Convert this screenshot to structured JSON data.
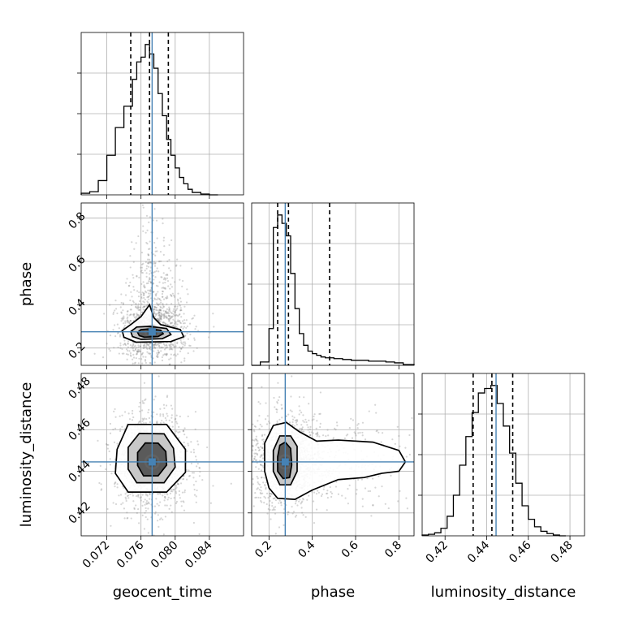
{
  "chart_data": {
    "type": "corner",
    "parameters": [
      "geocent_time",
      "phase",
      "luminosity_distance"
    ],
    "axis_labels": {
      "geocent_time": "geocent_time",
      "phase": "phase",
      "luminosity_distance": "luminosity_distance"
    },
    "ranges": {
      "geocent_time": [
        0.069,
        0.088
      ],
      "phase": [
        0.12,
        0.87
      ],
      "luminosity_distance": [
        0.409,
        0.487
      ]
    },
    "ticks": {
      "geocent_time": [
        "0.072",
        "0.076",
        "0.080",
        "0.084"
      ],
      "phase": [
        "0.2",
        "0.4",
        "0.6",
        "0.8"
      ],
      "luminosity_distance": [
        "0.42",
        "0.44",
        "0.46",
        "0.48"
      ]
    },
    "truths": {
      "geocent_time": 0.0773,
      "phase": 0.275,
      "luminosity_distance": 0.4445
    },
    "quantiles": {
      "geocent_time": [
        0.0748,
        0.077,
        0.0792
      ],
      "phase": [
        0.24,
        0.29,
        0.48
      ],
      "luminosity_distance": [
        0.4335,
        0.4425,
        0.4525
      ]
    },
    "histograms": {
      "geocent_time": {
        "edges": [
          0.069,
          0.07,
          0.071,
          0.072,
          0.073,
          0.074,
          0.075,
          0.0755,
          0.076,
          0.0765,
          0.077,
          0.0775,
          0.078,
          0.0785,
          0.079,
          0.0795,
          0.08,
          0.0805,
          0.081,
          0.0815,
          0.082,
          0.083,
          0.084,
          0.085
        ],
        "counts": [
          2,
          4,
          18,
          50,
          85,
          112,
          146,
          168,
          174,
          190,
          178,
          160,
          128,
          100,
          70,
          50,
          34,
          22,
          14,
          7,
          3,
          1,
          0
        ]
      },
      "phase": {
        "edges": [
          0.12,
          0.16,
          0.2,
          0.22,
          0.24,
          0.26,
          0.28,
          0.3,
          0.32,
          0.34,
          0.36,
          0.38,
          0.4,
          0.42,
          0.44,
          0.46,
          0.5,
          0.54,
          0.58,
          0.62,
          0.66,
          0.7,
          0.74,
          0.78,
          0.82,
          0.87
        ],
        "counts": [
          0,
          4,
          44,
          165,
          180,
          170,
          155,
          110,
          68,
          38,
          24,
          17,
          14,
          12,
          10,
          9,
          8,
          7,
          6,
          6,
          5,
          5,
          4,
          3,
          1
        ]
      },
      "luminosity_distance": {
        "edges": [
          0.409,
          0.412,
          0.415,
          0.418,
          0.421,
          0.424,
          0.427,
          0.43,
          0.433,
          0.436,
          0.439,
          0.442,
          0.445,
          0.448,
          0.451,
          0.454,
          0.457,
          0.46,
          0.463,
          0.466,
          0.469,
          0.472,
          0.475,
          0.478
        ],
        "counts": [
          1,
          2,
          4,
          10,
          26,
          54,
          94,
          132,
          164,
          190,
          196,
          200,
          176,
          146,
          110,
          70,
          40,
          22,
          12,
          6,
          3,
          1,
          0
        ]
      }
    },
    "contours_2d": {
      "phase_vs_geocent_time": [
        [
          [
            0.0754,
            0.227
          ],
          [
            0.0795,
            0.23
          ],
          [
            0.081,
            0.252
          ],
          [
            0.0806,
            0.285
          ],
          [
            0.0783,
            0.308
          ],
          [
            0.0775,
            0.34
          ],
          [
            0.077,
            0.4
          ],
          [
            0.076,
            0.345
          ],
          [
            0.0748,
            0.308
          ],
          [
            0.0738,
            0.28
          ],
          [
            0.074,
            0.25
          ]
        ],
        [
          [
            0.076,
            0.24
          ],
          [
            0.0785,
            0.243
          ],
          [
            0.0795,
            0.262
          ],
          [
            0.079,
            0.29
          ],
          [
            0.077,
            0.3
          ],
          [
            0.0755,
            0.297
          ],
          [
            0.0748,
            0.276
          ],
          [
            0.075,
            0.253
          ]
        ],
        [
          [
            0.0764,
            0.25
          ],
          [
            0.078,
            0.253
          ],
          [
            0.0786,
            0.266
          ],
          [
            0.0783,
            0.282
          ],
          [
            0.077,
            0.288
          ],
          [
            0.076,
            0.285
          ],
          [
            0.0756,
            0.272
          ],
          [
            0.0758,
            0.257
          ]
        ]
      ],
      "luminosity_distance_vs_geocent_time": [
        [
          [
            0.0745,
            0.43
          ],
          [
            0.079,
            0.43
          ],
          [
            0.0812,
            0.4395
          ],
          [
            0.0812,
            0.4505
          ],
          [
            0.079,
            0.4625
          ],
          [
            0.0745,
            0.4625
          ],
          [
            0.0732,
            0.4505
          ],
          [
            0.073,
            0.439
          ]
        ],
        [
          [
            0.0755,
            0.4345
          ],
          [
            0.0787,
            0.4345
          ],
          [
            0.08,
            0.442
          ],
          [
            0.0798,
            0.451
          ],
          [
            0.0787,
            0.458
          ],
          [
            0.0758,
            0.4582
          ],
          [
            0.0745,
            0.4515
          ],
          [
            0.0745,
            0.441
          ]
        ],
        [
          [
            0.0763,
            0.4378
          ],
          [
            0.078,
            0.4378
          ],
          [
            0.079,
            0.443
          ],
          [
            0.0789,
            0.4495
          ],
          [
            0.078,
            0.4535
          ],
          [
            0.0765,
            0.4536
          ],
          [
            0.0756,
            0.449
          ],
          [
            0.0756,
            0.4428
          ]
        ]
      ],
      "luminosity_distance_vs_phase": [
        [
          [
            0.18,
            0.44
          ],
          [
            0.2,
            0.432
          ],
          [
            0.24,
            0.427
          ],
          [
            0.32,
            0.4265
          ],
          [
            0.4,
            0.431
          ],
          [
            0.52,
            0.436
          ],
          [
            0.64,
            0.437
          ],
          [
            0.72,
            0.439
          ],
          [
            0.8,
            0.44
          ],
          [
            0.83,
            0.4445
          ],
          [
            0.8,
            0.45
          ],
          [
            0.68,
            0.454
          ],
          [
            0.52,
            0.455
          ],
          [
            0.42,
            0.4545
          ],
          [
            0.34,
            0.459
          ],
          [
            0.28,
            0.4635
          ],
          [
            0.22,
            0.462
          ],
          [
            0.18,
            0.4535
          ]
        ],
        [
          [
            0.22,
            0.44
          ],
          [
            0.25,
            0.4335
          ],
          [
            0.3,
            0.4335
          ],
          [
            0.33,
            0.44
          ],
          [
            0.33,
            0.452
          ],
          [
            0.3,
            0.457
          ],
          [
            0.25,
            0.457
          ],
          [
            0.22,
            0.45
          ]
        ],
        [
          [
            0.24,
            0.44
          ],
          [
            0.265,
            0.4365
          ],
          [
            0.295,
            0.437
          ],
          [
            0.305,
            0.443
          ],
          [
            0.3,
            0.451
          ],
          [
            0.275,
            0.454
          ],
          [
            0.25,
            0.4525
          ],
          [
            0.24,
            0.447
          ]
        ]
      ]
    }
  }
}
